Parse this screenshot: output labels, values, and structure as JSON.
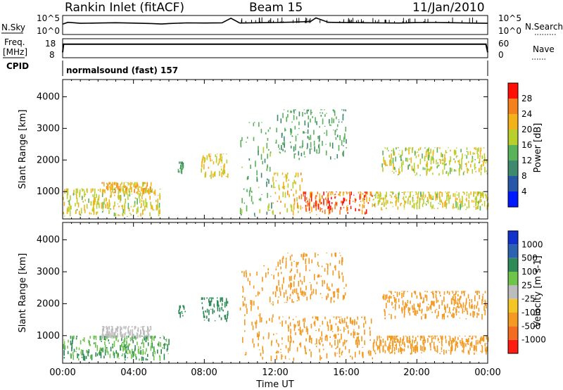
{
  "header": {
    "station": "Rankin Inlet (fitACF)",
    "beam": "Beam 15",
    "date": "11/Jan/2010"
  },
  "top_panels": {
    "nsky_label": "N.Sky",
    "nsearch_label": "N.Search",
    "nsky_ticks": [
      "10^5",
      "10^0"
    ],
    "nsearch_ticks": [
      "10^5",
      "10^0"
    ],
    "freq_label": "Freq.",
    "freq_unit": "[MHz]",
    "freq_ticks": [
      "18",
      "8"
    ],
    "nave_label": "Nave",
    "nave_ticks": [
      "60",
      "0"
    ],
    "cpid_label": "CPID",
    "cpid_value": "normalsound (fast) 157"
  },
  "x_axis": {
    "label": "Time UT",
    "ticks": [
      "00:00",
      "04:00",
      "08:00",
      "12:00",
      "16:00",
      "20:00",
      "00:00"
    ]
  },
  "panels": {
    "power": {
      "ylabel": "Slant Range [km]",
      "cb_label": "Power [dB]",
      "cb_ticks": [
        "4",
        "8",
        "12",
        "16",
        "20",
        "24",
        "28"
      ],
      "cb_colors": [
        "#0018ff",
        "#2757a6",
        "#3f8a6e",
        "#58b35a",
        "#b9cf2c",
        "#f3b219",
        "#f4801e",
        "#ff0f05"
      ]
    },
    "velocity": {
      "ylabel": "Slant Range [km]",
      "cb_label": "Velocity [m s-1]",
      "cb_ticks": [
        "1000",
        "500",
        "100",
        "25",
        "-25",
        "-100",
        "-500",
        "-1000"
      ],
      "cb_colors": [
        "#1133cc",
        "#2d62b0",
        "#2e8a57",
        "#6fc54a",
        "#bcbcbc",
        "#f3c623",
        "#f29a22",
        "#f36d20",
        "#ff1d10"
      ]
    }
  },
  "chart_data": [
    {
      "type": "line",
      "name": "N.Sky",
      "ylim": [
        1,
        100000
      ],
      "log": true,
      "xlim": [
        0,
        24
      ],
      "x": [
        0,
        0.3,
        1,
        2,
        3,
        4,
        5,
        5.6,
        6,
        7,
        8,
        9,
        9.5,
        10,
        11,
        12,
        13,
        14,
        14.3,
        15,
        16,
        17,
        18,
        19,
        20,
        21,
        22,
        23,
        24
      ],
      "y": [
        600,
        2500,
        1200,
        1500,
        1800,
        1400,
        1000,
        700,
        1000,
        1600,
        1500,
        1700,
        60000,
        1500,
        1800,
        2200,
        3000,
        5000,
        80000,
        2500,
        2000,
        1800,
        1600,
        1500,
        2000,
        2200,
        1800,
        1500,
        1200
      ]
    },
    {
      "type": "line",
      "name": "Freq.",
      "ylim": [
        8,
        18
      ],
      "xlim": [
        0,
        24
      ],
      "x": [
        0,
        0.05,
        0.1,
        23.9,
        24
      ],
      "y": [
        10.5,
        15.5,
        15.5,
        15.5,
        10.5
      ]
    },
    {
      "type": "heatmap",
      "name": "Power",
      "ylabel": "Slant Range",
      "xlabel": "Time UT",
      "xlim": [
        0,
        24
      ],
      "ylim": [
        180,
        4500
      ],
      "yticks": [
        1000,
        2000,
        3000,
        4000
      ],
      "clim": [
        0,
        30
      ],
      "regions": [
        {
          "t": [
            0,
            5.5
          ],
          "r": [
            200,
            1100
          ],
          "v": 19
        },
        {
          "t": [
            2.2,
            5.0
          ],
          "r": [
            900,
            1300
          ],
          "v": 22
        },
        {
          "t": [
            6.5,
            6.9
          ],
          "r": [
            1550,
            1950
          ],
          "v": 12
        },
        {
          "t": [
            7.8,
            9.3
          ],
          "r": [
            1400,
            2200
          ],
          "v": 20
        },
        {
          "t": [
            10.0,
            11.8
          ],
          "r": [
            200,
            3200
          ],
          "v": 14
        },
        {
          "t": [
            11.8,
            13.5
          ],
          "r": [
            200,
            1600
          ],
          "v": 21
        },
        {
          "t": [
            13.5,
            17.5
          ],
          "r": [
            250,
            1000
          ],
          "v": 27
        },
        {
          "t": [
            17.5,
            24.0
          ],
          "r": [
            400,
            1000
          ],
          "v": 19
        },
        {
          "t": [
            18.0,
            24.0
          ],
          "r": [
            1500,
            2400
          ],
          "v": 18
        },
        {
          "t": [
            12.0,
            16.0
          ],
          "r": [
            2000,
            3600
          ],
          "v": 13
        }
      ]
    },
    {
      "type": "heatmap",
      "name": "Velocity",
      "ylabel": "Slant Range",
      "xlabel": "Time UT",
      "xlim": [
        0,
        24
      ],
      "ylim": [
        180,
        4500
      ],
      "yticks": [
        1000,
        2000,
        3000,
        4000
      ],
      "regions": [
        {
          "t": [
            0,
            6.0
          ],
          "r": [
            200,
            1000
          ],
          "v": 100
        },
        {
          "t": [
            2.2,
            5.0
          ],
          "r": [
            900,
            1300
          ],
          "v": 0
        },
        {
          "t": [
            6.5,
            6.9
          ],
          "r": [
            1550,
            1950
          ],
          "v": 300
        },
        {
          "t": [
            7.8,
            9.3
          ],
          "r": [
            1400,
            2200
          ],
          "v": 400
        },
        {
          "t": [
            10.0,
            12.0
          ],
          "r": [
            200,
            3200
          ],
          "v": -300
        },
        {
          "t": [
            12.0,
            17.5
          ],
          "r": [
            200,
            1600
          ],
          "v": -400
        },
        {
          "t": [
            17.5,
            24.0
          ],
          "r": [
            400,
            1000
          ],
          "v": -300
        },
        {
          "t": [
            18.0,
            24.0
          ],
          "r": [
            1500,
            2400
          ],
          "v": -400
        },
        {
          "t": [
            12.0,
            16.0
          ],
          "r": [
            2000,
            3600
          ],
          "v": -150
        }
      ]
    }
  ]
}
